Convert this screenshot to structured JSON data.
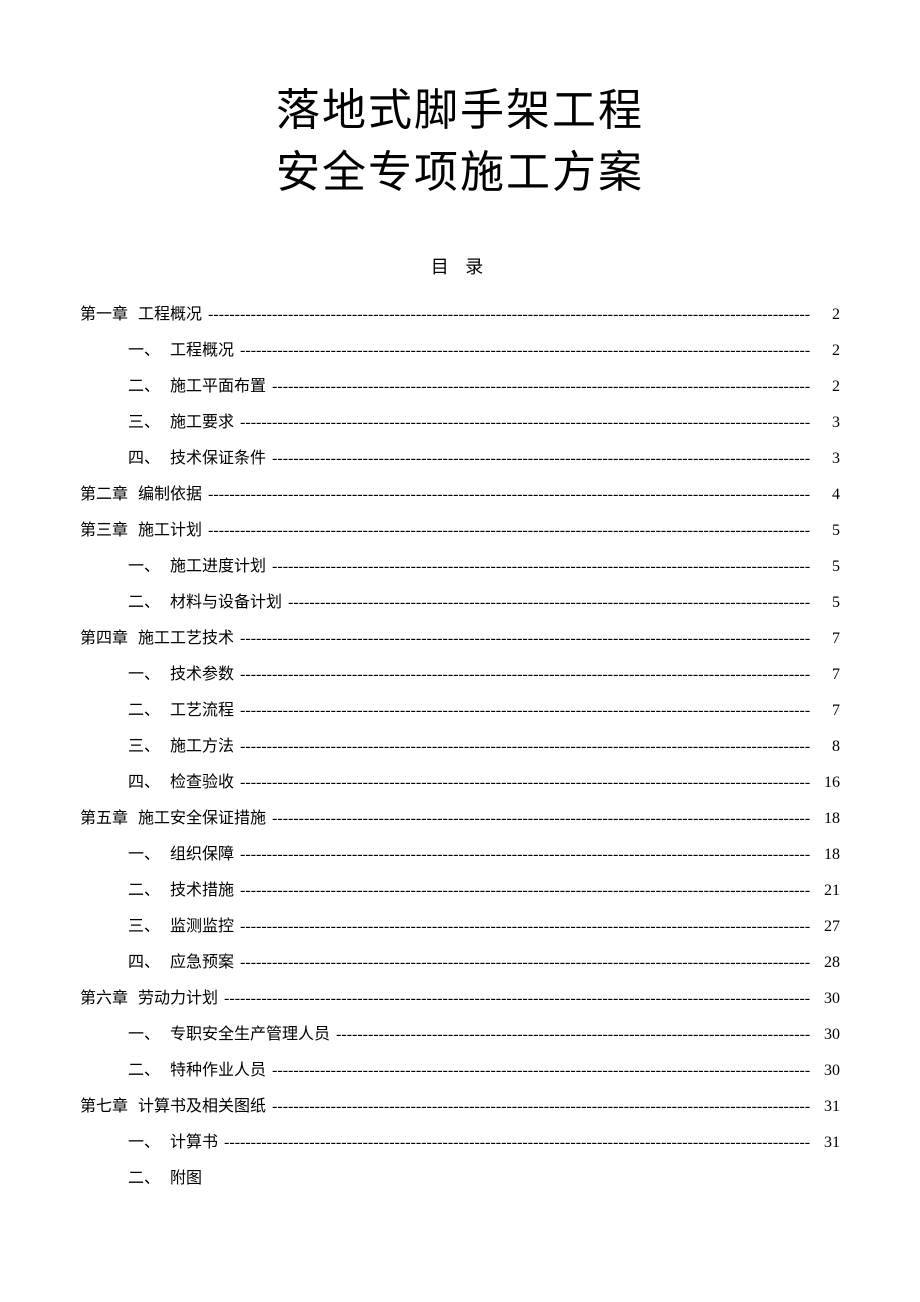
{
  "title": {
    "line1": "落地式脚手架工程",
    "line2": "安全专项施工方案"
  },
  "tocHeading": "目 录",
  "leaderChar": "-",
  "toc": [
    {
      "level": "chapter",
      "num": "第一章",
      "label": "工程概况",
      "page": "2"
    },
    {
      "level": "section",
      "num": "一、",
      "label": "工程概况",
      "page": "2"
    },
    {
      "level": "section",
      "num": "二、",
      "label": "施工平面布置",
      "page": "2"
    },
    {
      "level": "section",
      "num": "三、",
      "label": "施工要求",
      "page": "3"
    },
    {
      "level": "section",
      "num": "四、",
      "label": "技术保证条件",
      "page": "3"
    },
    {
      "level": "chapter",
      "num": "第二章",
      "label": "编制依据",
      "page": "4"
    },
    {
      "level": "chapter",
      "num": "第三章",
      "label": "施工计划",
      "page": "5"
    },
    {
      "level": "section",
      "num": "一、",
      "label": "施工进度计划",
      "page": "5"
    },
    {
      "level": "section",
      "num": "二、",
      "label": "材料与设备计划",
      "page": "5"
    },
    {
      "level": "chapter",
      "num": "第四章",
      "label": "施工工艺技术",
      "page": "7"
    },
    {
      "level": "section",
      "num": "一、",
      "label": "技术参数",
      "page": "7"
    },
    {
      "level": "section",
      "num": "二、",
      "label": "工艺流程",
      "page": "7"
    },
    {
      "level": "section",
      "num": "三、",
      "label": "施工方法",
      "page": "8"
    },
    {
      "level": "section",
      "num": "四、",
      "label": "检查验收",
      "page": "16"
    },
    {
      "level": "chapter",
      "num": "第五章",
      "label": "施工安全保证措施",
      "page": "18"
    },
    {
      "level": "section",
      "num": "一、",
      "label": "组织保障",
      "page": "18"
    },
    {
      "level": "section",
      "num": "二、",
      "label": "技术措施",
      "page": "21"
    },
    {
      "level": "section",
      "num": "三、",
      "label": "监测监控",
      "page": "27"
    },
    {
      "level": "section",
      "num": "四、",
      "label": "应急预案",
      "page": "28"
    },
    {
      "level": "chapter",
      "num": "第六章",
      "label": "劳动力计划",
      "page": "30"
    },
    {
      "level": "section",
      "num": "一、",
      "label": "专职安全生产管理人员",
      "page": "30"
    },
    {
      "level": "section",
      "num": "二、",
      "label": "特种作业人员",
      "page": "30"
    },
    {
      "level": "chapter",
      "num": "第七章",
      "label": "计算书及相关图纸",
      "page": "31"
    },
    {
      "level": "section",
      "num": "一、",
      "label": "计算书",
      "page": "31"
    },
    {
      "level": "section",
      "num": "二、",
      "label": "附图",
      "page": ""
    }
  ]
}
